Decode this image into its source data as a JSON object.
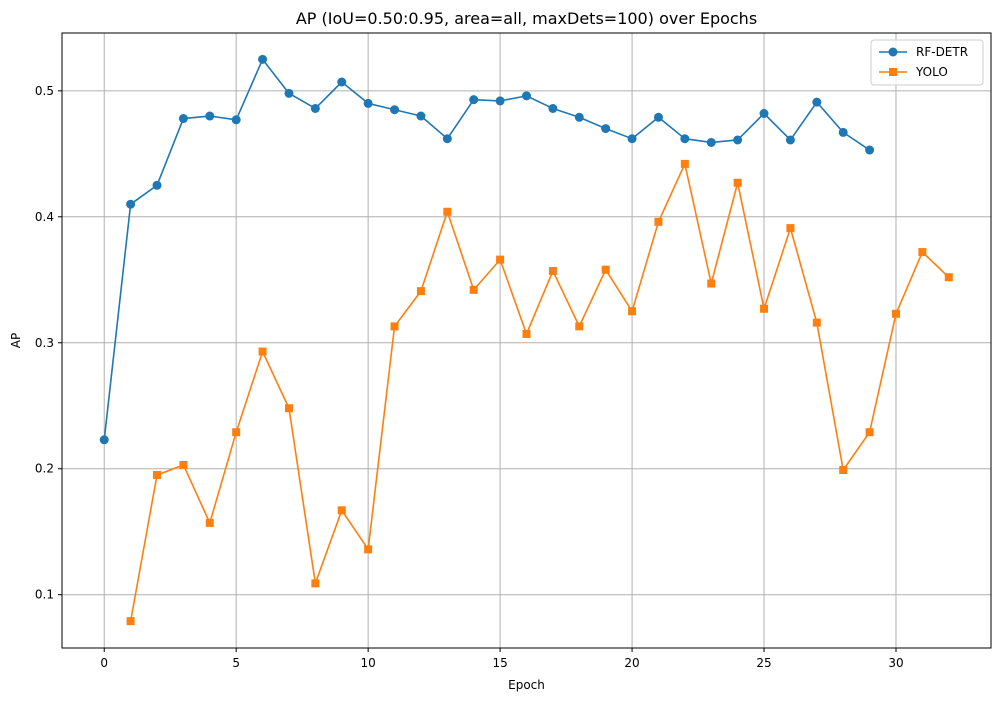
{
  "chart_data": {
    "type": "line",
    "title": "AP (IoU=0.50:0.95, area=all, maxDets=100) over Epochs",
    "xlabel": "Epoch",
    "ylabel": "AP",
    "xlim": [
      -1.6,
      33.6
    ],
    "ylim": [
      0.0577,
      0.5459
    ],
    "x_ticks": [
      0,
      5,
      10,
      15,
      20,
      25,
      30
    ],
    "y_ticks": [
      0.1,
      0.2,
      0.3,
      0.4,
      0.5
    ],
    "x_tick_labels": [
      "0",
      "5",
      "10",
      "15",
      "20",
      "25",
      "30"
    ],
    "y_tick_labels": [
      "0.1",
      "0.2",
      "0.3",
      "0.4",
      "0.5"
    ],
    "grid": true,
    "legend_position": "top-right",
    "series": [
      {
        "name": "RF-DETR",
        "color": "#1f77b4",
        "marker": "circle",
        "x": [
          0,
          1,
          2,
          3,
          4,
          5,
          6,
          7,
          8,
          9,
          10,
          11,
          12,
          13,
          14,
          15,
          16,
          17,
          18,
          19,
          20,
          21,
          22,
          23,
          24,
          25,
          26,
          27,
          28,
          29
        ],
        "values": [
          0.223,
          0.41,
          0.425,
          0.478,
          0.48,
          0.477,
          0.525,
          0.498,
          0.486,
          0.507,
          0.49,
          0.485,
          0.48,
          0.462,
          0.493,
          0.492,
          0.496,
          0.486,
          0.479,
          0.47,
          0.462,
          0.479,
          0.462,
          0.459,
          0.461,
          0.482,
          0.461,
          0.491,
          0.467,
          0.453
        ]
      },
      {
        "name": "YOLO",
        "color": "#ff7f0e",
        "marker": "square",
        "x": [
          1,
          2,
          3,
          4,
          5,
          6,
          7,
          8,
          9,
          10,
          11,
          12,
          13,
          14,
          15,
          16,
          17,
          18,
          19,
          20,
          21,
          22,
          23,
          24,
          25,
          26,
          27,
          28,
          29,
          30,
          31,
          32
        ],
        "values": [
          0.079,
          0.195,
          0.203,
          0.157,
          0.229,
          0.293,
          0.248,
          0.109,
          0.167,
          0.136,
          0.313,
          0.341,
          0.404,
          0.342,
          0.366,
          0.307,
          0.357,
          0.313,
          0.358,
          0.325,
          0.396,
          0.442,
          0.347,
          0.427,
          0.327,
          0.391,
          0.316,
          0.199,
          0.229,
          0.323,
          0.372,
          0.352
        ]
      }
    ]
  }
}
